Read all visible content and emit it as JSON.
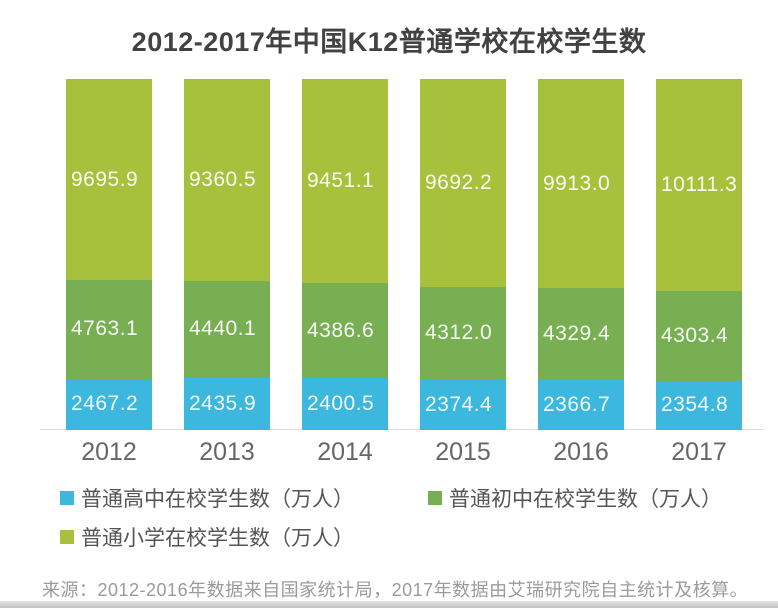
{
  "title": "2012-2017年中国K12普通学校在校学生数",
  "chart_data": {
    "type": "bar",
    "subtype": "stacked-column",
    "title": "2012-2017年中国K12普通学校在校学生数",
    "categories": [
      "2012",
      "2013",
      "2014",
      "2015",
      "2016",
      "2017"
    ],
    "unit": "万人",
    "equal_bar_height": true,
    "grid": false,
    "legend_position": "bottom",
    "value_label_color": "#ffffff",
    "series": [
      {
        "name": "普通高中在校学生数（万人）",
        "color": "#3cb7dd",
        "values": [
          2467.2,
          2435.9,
          2400.5,
          2374.4,
          2366.7,
          2354.8
        ],
        "labels": [
          "2467.2",
          "2435.9",
          "2400.5",
          "2374.4",
          "2366.7",
          "2354.8"
        ]
      },
      {
        "name": "普通初中在校学生数（万人）",
        "color": "#78af52",
        "values": [
          4763.1,
          4440.1,
          4386.6,
          4312.0,
          4329.4,
          4303.4
        ],
        "labels": [
          "4763.1",
          "4440.1",
          "4386.6",
          "4312.0",
          "4329.4",
          "4303.4"
        ]
      },
      {
        "name": "普通小学在校学生数（万人）",
        "color": "#a7c13d",
        "values": [
          9695.9,
          9360.5,
          9451.1,
          9692.2,
          9913.0,
          10111.3
        ],
        "labels": [
          "9695.9",
          "9360.5",
          "9451.1",
          "9692.2",
          "9913.0",
          "10111.3"
        ]
      }
    ]
  },
  "legend": {
    "items": [
      {
        "label": "普通高中在校学生数（万人）",
        "color": "#3cb7dd"
      },
      {
        "label": "普通初中在校学生数（万人）",
        "color": "#78af52"
      },
      {
        "label": "普通小学在校学生数（万人）",
        "color": "#a7c13d"
      }
    ]
  },
  "source": "来源：2012-2016年数据来自国家统计局，2017年数据由艾瑞研究院自主统计及核算。"
}
